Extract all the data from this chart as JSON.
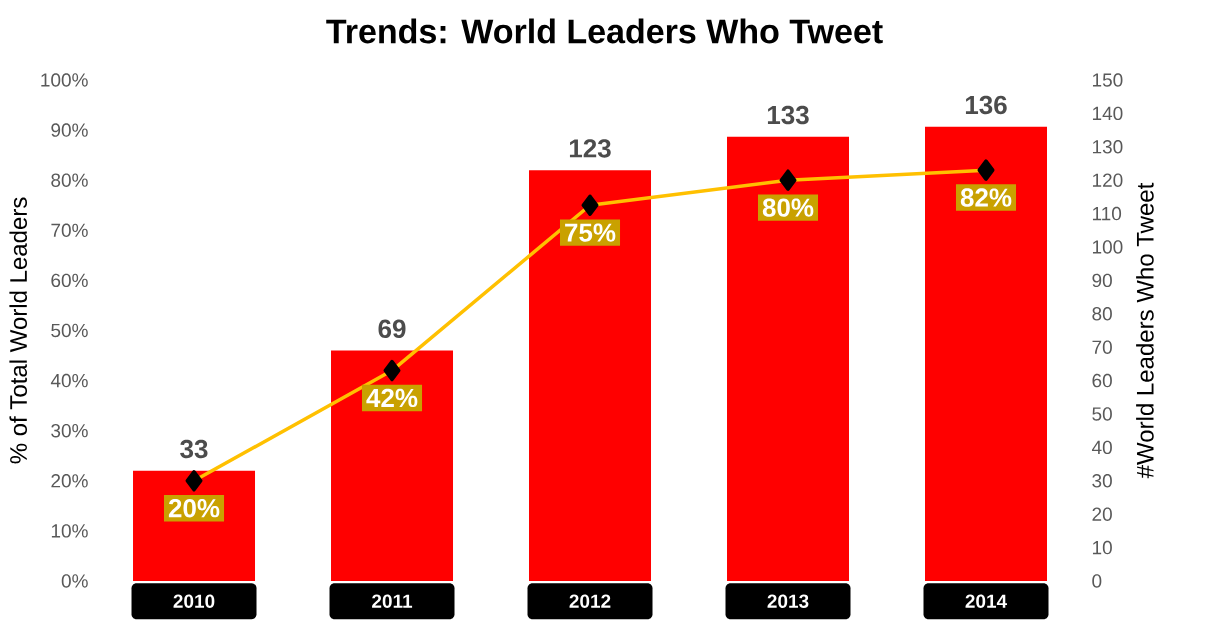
{
  "chart_data": {
    "type": "bar",
    "title": "Trends: World Leaders Who Tweet",
    "ylabel": "% of Total World Leaders",
    "y2label": "#World Leaders Who Tweet",
    "categories": [
      "2010",
      "2011",
      "2012",
      "2013",
      "2014"
    ],
    "series": [
      {
        "axis": "y2",
        "color": "#ff0000",
        "values": [
          33,
          69,
          123,
          133,
          136
        ],
        "value_labels": [
          "33",
          "69",
          "123",
          "133",
          "136"
        ]
      },
      {
        "type": "line",
        "color": "#ffc000",
        "values": [
          20,
          42,
          75,
          80,
          82
        ],
        "value_labels": [
          "20%",
          "42%",
          "75%",
          "80%",
          "82%"
        ]
      }
    ],
    "ylim": [
      0,
      100
    ],
    "yticks": [
      {
        "value": 0,
        "label": "0%"
      },
      {
        "value": 10,
        "label": "10%"
      },
      {
        "value": 20,
        "label": "20%"
      },
      {
        "value": 30,
        "label": "30%"
      },
      {
        "value": 40,
        "label": "40%"
      },
      {
        "value": 50,
        "label": "50%"
      },
      {
        "value": 60,
        "label": "60%"
      },
      {
        "value": 70,
        "label": "70%"
      },
      {
        "value": 80,
        "label": "80%"
      },
      {
        "value": 90,
        "label": "90%"
      },
      {
        "value": 100,
        "label": "100%"
      }
    ],
    "y2lim": [
      0,
      150
    ],
    "y2ticks": [
      0,
      10,
      20,
      30,
      40,
      50,
      60,
      70,
      80,
      90,
      100,
      110,
      120,
      130,
      140,
      150
    ],
    "marker": "diamond"
  }
}
